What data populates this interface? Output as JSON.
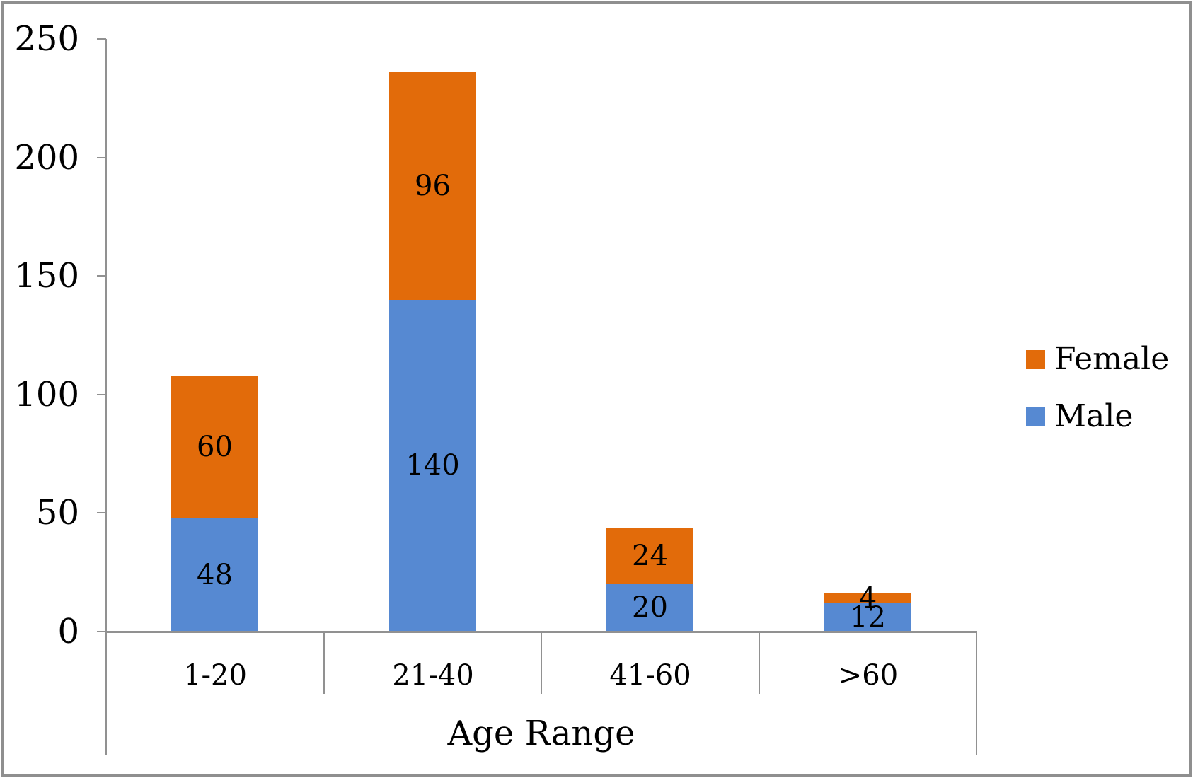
{
  "chart_data": {
    "type": "bar",
    "stacked": true,
    "title": "",
    "xlabel": "Age Range",
    "ylabel": "",
    "categories": [
      "1-20",
      "21-40",
      "41-60",
      ">60"
    ],
    "series": [
      {
        "name": "Male",
        "color": "#5689D2",
        "values": [
          48,
          140,
          20,
          12
        ]
      },
      {
        "name": "Female",
        "color": "#E26B0A",
        "values": [
          60,
          96,
          24,
          4
        ]
      }
    ],
    "ylim": [
      0,
      250
    ],
    "yticks": [
      0,
      50,
      100,
      150,
      200,
      250
    ],
    "legend": {
      "position": "right",
      "entries": [
        "Female",
        "Male"
      ]
    },
    "grid": false,
    "bar_value_labels": true,
    "axis_color": "#919191",
    "text_color": "#000000",
    "frame_border_color": "#8f8f8f",
    "background": "#FFFFFF"
  }
}
